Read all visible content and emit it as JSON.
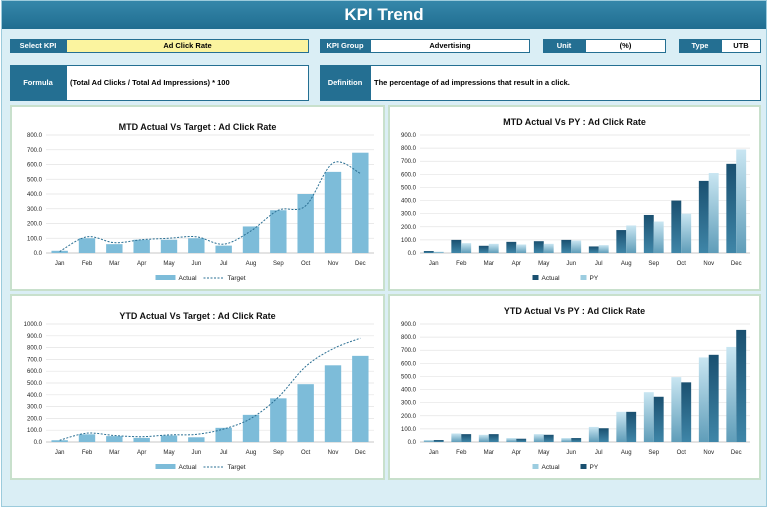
{
  "header": {
    "title": "KPI Trend"
  },
  "selectors": {
    "select_kpi_label": "Select KPI",
    "select_kpi_value": "Ad Click Rate",
    "kpi_group_label": "KPI Group",
    "kpi_group_value": "Advertising",
    "unit_label": "Unit",
    "unit_value": "(%)",
    "type_label": "Type",
    "type_value": "UTB"
  },
  "info": {
    "formula_label": "Formula",
    "formula_value": "(Total Ad Clicks / Total Ad Impressions) * 100",
    "definition_label": "Definition",
    "definition_value": "The percentage of ad impressions that result in a click."
  },
  "colors": {
    "actual_bar": "#7dbcd9",
    "target_line": "#2a6f93",
    "py_dark_top": "#1a5070",
    "py_light_top": "#c9e6f2",
    "label_bg": "#246f92"
  },
  "chart_data": [
    {
      "id": "mtd-target",
      "type": "bar",
      "title": "MTD Actual Vs Target : Ad Click Rate",
      "categories": [
        "Jan",
        "Feb",
        "Mar",
        "Apr",
        "May",
        "Jun",
        "Jul",
        "Aug",
        "Sep",
        "Oct",
        "Nov",
        "Dec"
      ],
      "ylim": [
        0,
        800
      ],
      "yticks": [
        "0.0",
        "100.0",
        "200.0",
        "300.0",
        "400.0",
        "500.0",
        "600.0",
        "700.0",
        "800.0"
      ],
      "legend": [
        "Actual",
        "Target"
      ],
      "series": [
        {
          "name": "Actual",
          "kind": "bar",
          "values": [
            15,
            100,
            60,
            90,
            90,
            100,
            50,
            180,
            290,
            400,
            550,
            680
          ]
        },
        {
          "name": "Target",
          "kind": "line",
          "values": [
            10,
            110,
            70,
            90,
            100,
            110,
            60,
            150,
            290,
            320,
            610,
            540
          ]
        }
      ]
    },
    {
      "id": "mtd-py",
      "type": "bar",
      "title": "MTD Actual Vs PY : Ad Click Rate",
      "categories": [
        "Jan",
        "Feb",
        "Mar",
        "Apr",
        "May",
        "Jun",
        "Jul",
        "Aug",
        "Sep",
        "Oct",
        "Nov",
        "Dec"
      ],
      "ylim": [
        0,
        900
      ],
      "yticks": [
        "0.0",
        "100.0",
        "200.0",
        "300.0",
        "400.0",
        "500.0",
        "600.0",
        "700.0",
        "800.0",
        "900.0"
      ],
      "legend": [
        "Actual",
        "PY"
      ],
      "series": [
        {
          "name": "Actual",
          "kind": "bar-dark",
          "values": [
            15,
            100,
            55,
            85,
            90,
            100,
            50,
            175,
            290,
            400,
            550,
            680
          ]
        },
        {
          "name": "PY",
          "kind": "bar-light",
          "values": [
            10,
            75,
            70,
            65,
            70,
            95,
            60,
            210,
            240,
            300,
            610,
            790
          ]
        }
      ]
    },
    {
      "id": "ytd-target",
      "type": "bar",
      "title": "YTD Actual Vs Target : Ad Click Rate",
      "categories": [
        "Jan",
        "Feb",
        "Mar",
        "Apr",
        "May",
        "Jun",
        "Jul",
        "Aug",
        "Sep",
        "Oct",
        "Nov",
        "Dec"
      ],
      "ylim": [
        0,
        1000
      ],
      "yticks": [
        "0.0",
        "100.0",
        "200.0",
        "300.0",
        "400.0",
        "500.0",
        "600.0",
        "700.0",
        "800.0",
        "900.0",
        "1000.0"
      ],
      "legend": [
        "Actual",
        "Target"
      ],
      "series": [
        {
          "name": "Actual",
          "kind": "bar",
          "values": [
            15,
            65,
            50,
            35,
            55,
            40,
            120,
            230,
            370,
            490,
            650,
            730
          ]
        },
        {
          "name": "Target",
          "kind": "line",
          "values": [
            15,
            75,
            55,
            45,
            60,
            65,
            110,
            200,
            380,
            640,
            790,
            880
          ]
        }
      ]
    },
    {
      "id": "ytd-py",
      "type": "bar",
      "title": "YTD Actual Vs PY : Ad Click Rate",
      "categories": [
        "Jan",
        "Feb",
        "Mar",
        "Apr",
        "May",
        "Jun",
        "Jul",
        "Aug",
        "Sep",
        "Oct",
        "Nov",
        "Dec"
      ],
      "ylim": [
        0,
        900
      ],
      "yticks": [
        "0.0",
        "100.0",
        "200.0",
        "300.0",
        "400.0",
        "500.0",
        "600.0",
        "700.0",
        "800.0",
        "900.0"
      ],
      "legend": [
        "Actual",
        "PY"
      ],
      "series": [
        {
          "name": "Actual",
          "kind": "bar-light",
          "values": [
            15,
            65,
            55,
            30,
            60,
            30,
            115,
            230,
            380,
            495,
            645,
            725
          ]
        },
        {
          "name": "PY",
          "kind": "bar-dark",
          "values": [
            15,
            60,
            60,
            25,
            55,
            30,
            105,
            230,
            345,
            455,
            665,
            855
          ]
        }
      ]
    }
  ]
}
